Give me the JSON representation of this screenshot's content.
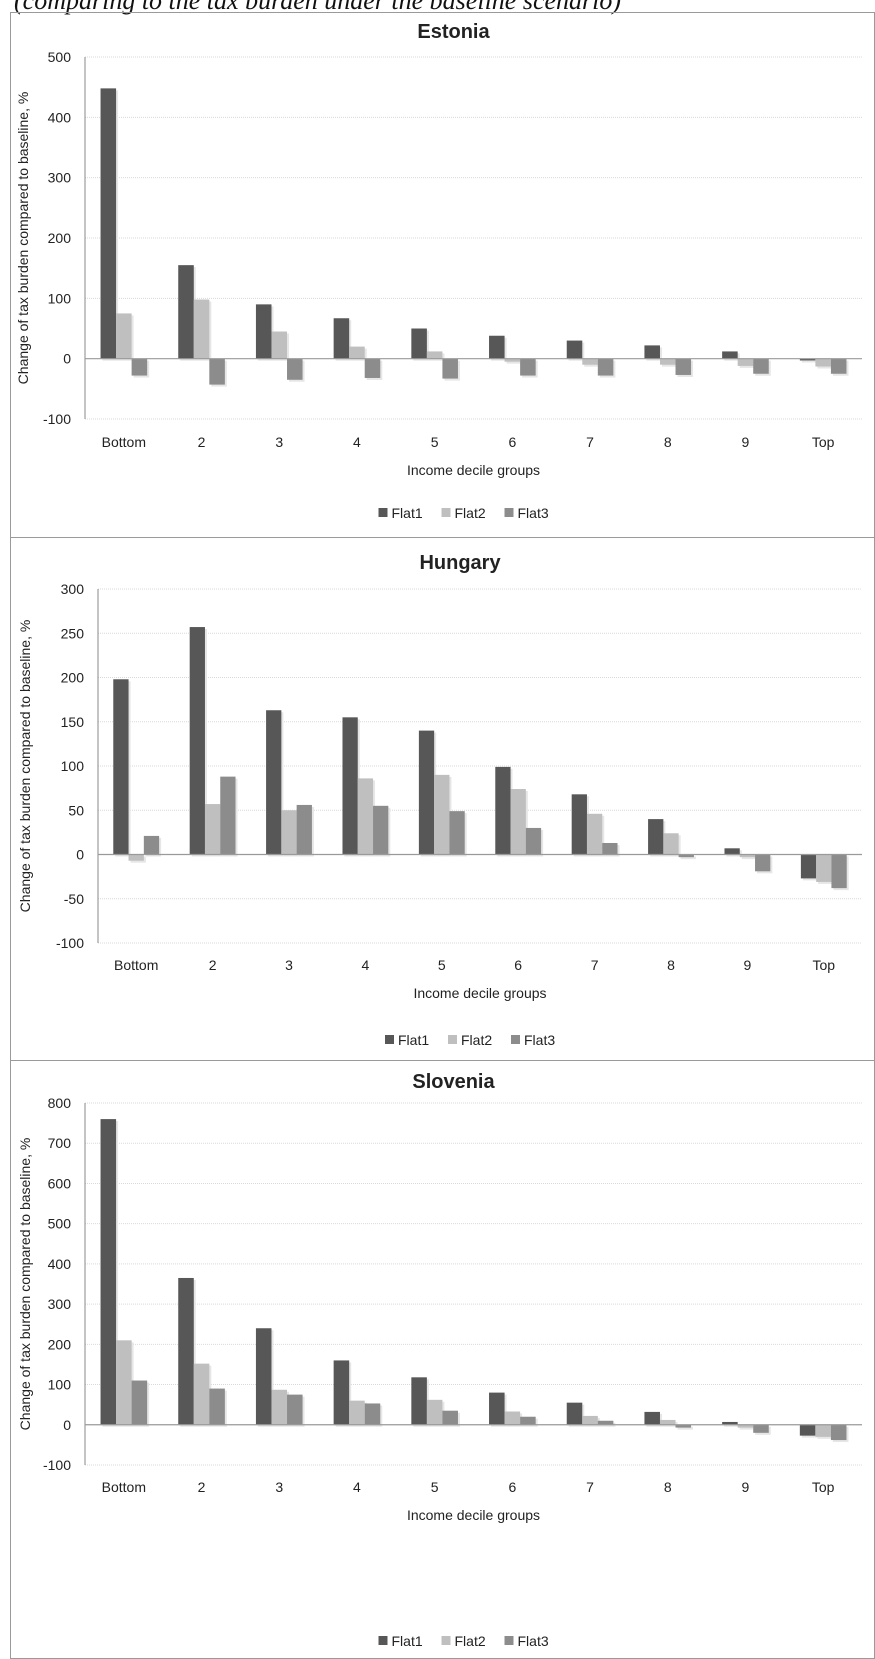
{
  "caption": "(comparing to the tax burden under the baseline scenario)",
  "legend": [
    "Flat1",
    "Flat2",
    "Flat3"
  ],
  "colors": {
    "Flat1": "#575757",
    "Flat2": "#bfbfbf",
    "Flat3": "#8c8c8c",
    "zero_line": "#9a9a9a",
    "grid": "#d9d9d9",
    "frame": "#9a9a9a"
  },
  "chart_data": [
    {
      "type": "bar",
      "title": "Estonia",
      "xlabel": "Income decile groups",
      "ylabel": "Change of tax burden compared to baseline, %",
      "categories": [
        "Bottom",
        "2",
        "3",
        "4",
        "5",
        "6",
        "7",
        "8",
        "9",
        "Top"
      ],
      "ylim": [
        -100,
        500
      ],
      "yticks": [
        "500",
        "400",
        "300",
        "200",
        "100",
        "0",
        "-100"
      ],
      "series": [
        {
          "name": "Flat1",
          "values": [
            448,
            155,
            90,
            67,
            50,
            38,
            30,
            22,
            12,
            -3
          ]
        },
        {
          "name": "Flat2",
          "values": [
            75,
            98,
            45,
            20,
            12,
            -5,
            -10,
            -10,
            -12,
            -13
          ]
        },
        {
          "name": "Flat3",
          "values": [
            -28,
            -43,
            -35,
            -32,
            -33,
            -28,
            -28,
            -27,
            -25,
            -25
          ]
        }
      ]
    },
    {
      "type": "bar",
      "title": "Hungary",
      "xlabel": "Income decile groups",
      "ylabel": "Change of tax burden compared to baseline, %",
      "categories": [
        "Bottom",
        "2",
        "3",
        "4",
        "5",
        "6",
        "7",
        "8",
        "9",
        "Top"
      ],
      "ylim": [
        -100,
        300
      ],
      "yticks": [
        "300",
        "250",
        "200",
        "150",
        "100",
        "50",
        "0",
        "-50",
        "-100"
      ],
      "series": [
        {
          "name": "Flat1",
          "values": [
            198,
            257,
            163,
            155,
            140,
            99,
            68,
            40,
            7,
            -27
          ]
        },
        {
          "name": "Flat2",
          "values": [
            -7,
            57,
            50,
            86,
            90,
            74,
            46,
            24,
            -3,
            -31
          ]
        },
        {
          "name": "Flat3",
          "values": [
            21,
            88,
            56,
            55,
            49,
            30,
            13,
            -3,
            -19,
            -38
          ]
        }
      ]
    },
    {
      "type": "bar",
      "title": "Slovenia",
      "xlabel": "Income decile groups",
      "ylabel": "Change of tax burden compared to baseline, %",
      "categories": [
        "Bottom",
        "2",
        "3",
        "4",
        "5",
        "6",
        "7",
        "8",
        "9",
        "Top"
      ],
      "ylim": [
        -100,
        800
      ],
      "yticks": [
        "800",
        "700",
        "600",
        "500",
        "400",
        "300",
        "200",
        "100",
        "0",
        "-100"
      ],
      "series": [
        {
          "name": "Flat1",
          "values": [
            760,
            365,
            240,
            160,
            118,
            80,
            55,
            32,
            7,
            -27
          ]
        },
        {
          "name": "Flat2",
          "values": [
            210,
            152,
            87,
            60,
            62,
            33,
            22,
            12,
            -7,
            -30
          ]
        },
        {
          "name": "Flat3",
          "values": [
            110,
            90,
            75,
            53,
            35,
            20,
            10,
            -7,
            -20,
            -38
          ]
        }
      ]
    }
  ]
}
